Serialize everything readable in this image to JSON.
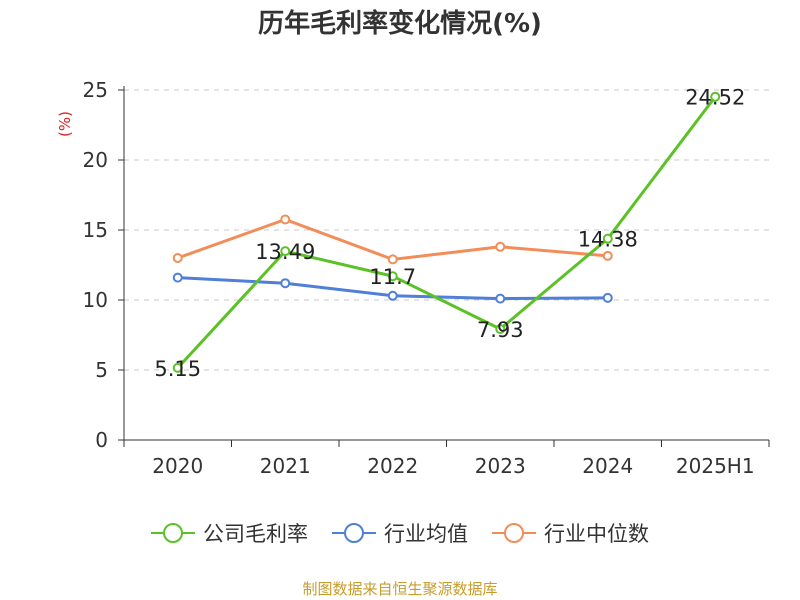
{
  "title": "历年毛利率变化情况(%)",
  "source": "制图数据来自恒生聚源数据库",
  "chart_data": {
    "type": "line",
    "title": "历年毛利率变化情况(%)",
    "ylabel": "(%)",
    "xlabel": "",
    "categories": [
      "2020",
      "2021",
      "2022",
      "2023",
      "2024",
      "2025H1"
    ],
    "ylim": [
      0,
      25
    ],
    "yticks": [
      0,
      5,
      10,
      15,
      20,
      25
    ],
    "grid": true,
    "legend_position": "bottom",
    "series": [
      {
        "name": "公司毛利率",
        "color": "#5bc226",
        "values": [
          5.15,
          13.49,
          11.7,
          7.93,
          14.38,
          24.52
        ],
        "labels": [
          "5.15",
          "13.49",
          "11.7",
          "7.93",
          "14.38",
          "24.52"
        ]
      },
      {
        "name": "行业均值",
        "color": "#4f7fd6",
        "values": [
          11.6,
          11.2,
          10.3,
          10.1,
          10.15,
          null
        ],
        "labels": null
      },
      {
        "name": "行业中位数",
        "color": "#f28d5a",
        "values": [
          13.0,
          15.75,
          12.9,
          13.8,
          13.15,
          null
        ],
        "labels": null
      }
    ]
  }
}
